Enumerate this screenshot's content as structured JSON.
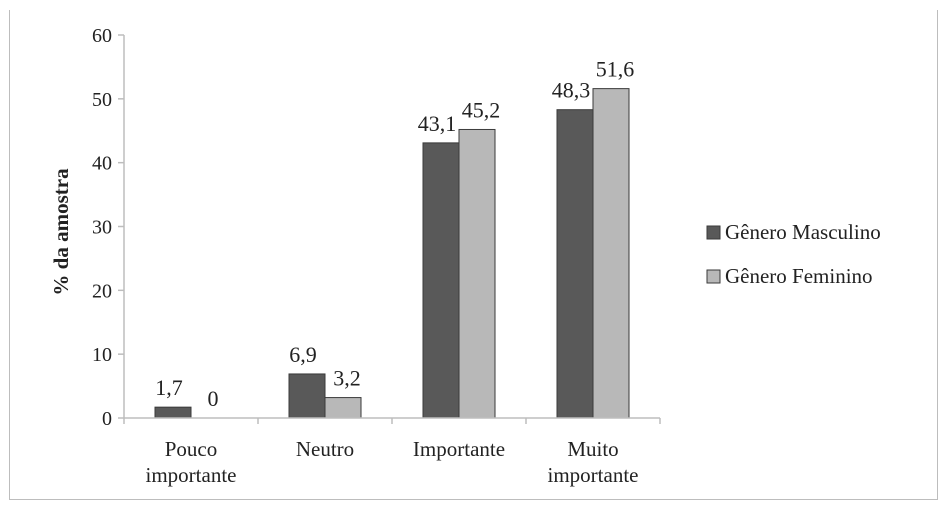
{
  "caption": "",
  "chart_data": {
    "type": "bar",
    "ylabel": "% da amostra",
    "xlabel": "",
    "ylim": [
      0,
      60
    ],
    "yticks": [
      0,
      10,
      20,
      30,
      40,
      50,
      60
    ],
    "categories": [
      [
        "Pouco",
        "importante"
      ],
      [
        "Neutro"
      ],
      [
        "Importante"
      ],
      [
        "Muito",
        "importante"
      ]
    ],
    "series": [
      {
        "name": "Gênero Masculino",
        "color": "#595959",
        "values": [
          1.7,
          6.9,
          43.1,
          48.3
        ],
        "labels": [
          "1,7",
          "6,9",
          "43,1",
          "48,3"
        ]
      },
      {
        "name": "Gênero Feminino",
        "color": "#b8b8b8",
        "values": [
          0,
          3.2,
          45.2,
          51.6
        ],
        "labels": [
          "0",
          "3,2",
          "45,2",
          "51,6"
        ]
      }
    ],
    "legend": "right",
    "grid": false
  }
}
